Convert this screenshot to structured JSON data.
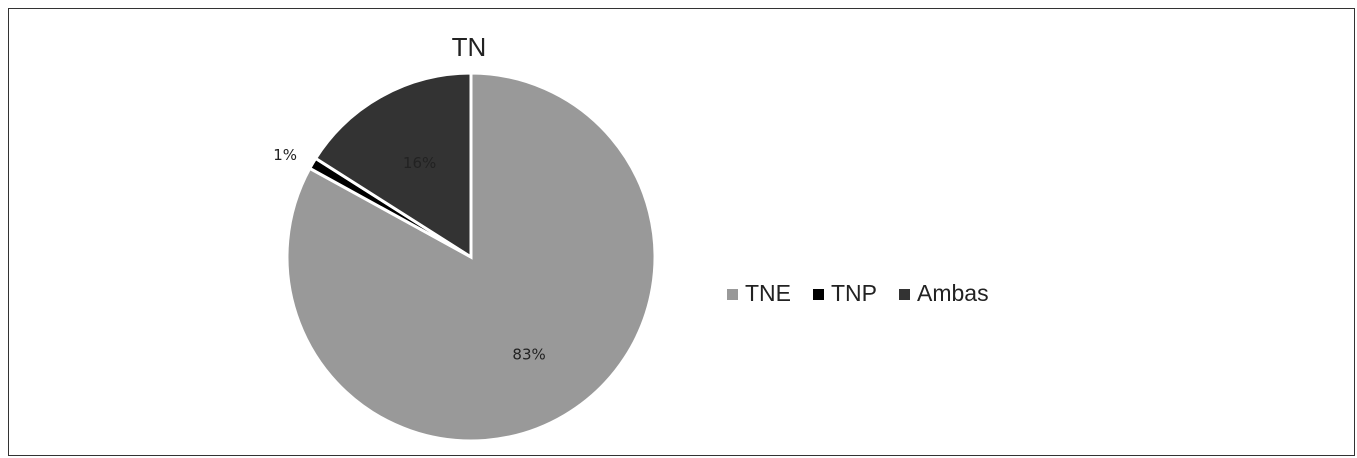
{
  "chart_data": {
    "type": "pie",
    "title": "TN",
    "categories": [
      "TNE",
      "TNP",
      "Ambas"
    ],
    "values": [
      83,
      1,
      16
    ],
    "data_labels": [
      "83%",
      "1%",
      "16%"
    ],
    "colors": [
      "#999999",
      "#000000",
      "#333333"
    ],
    "legend": {
      "position": "right",
      "entries": [
        "TNE",
        "TNP",
        "Ambas"
      ]
    },
    "start_angle": "12 o'clock",
    "direction": "clockwise"
  }
}
